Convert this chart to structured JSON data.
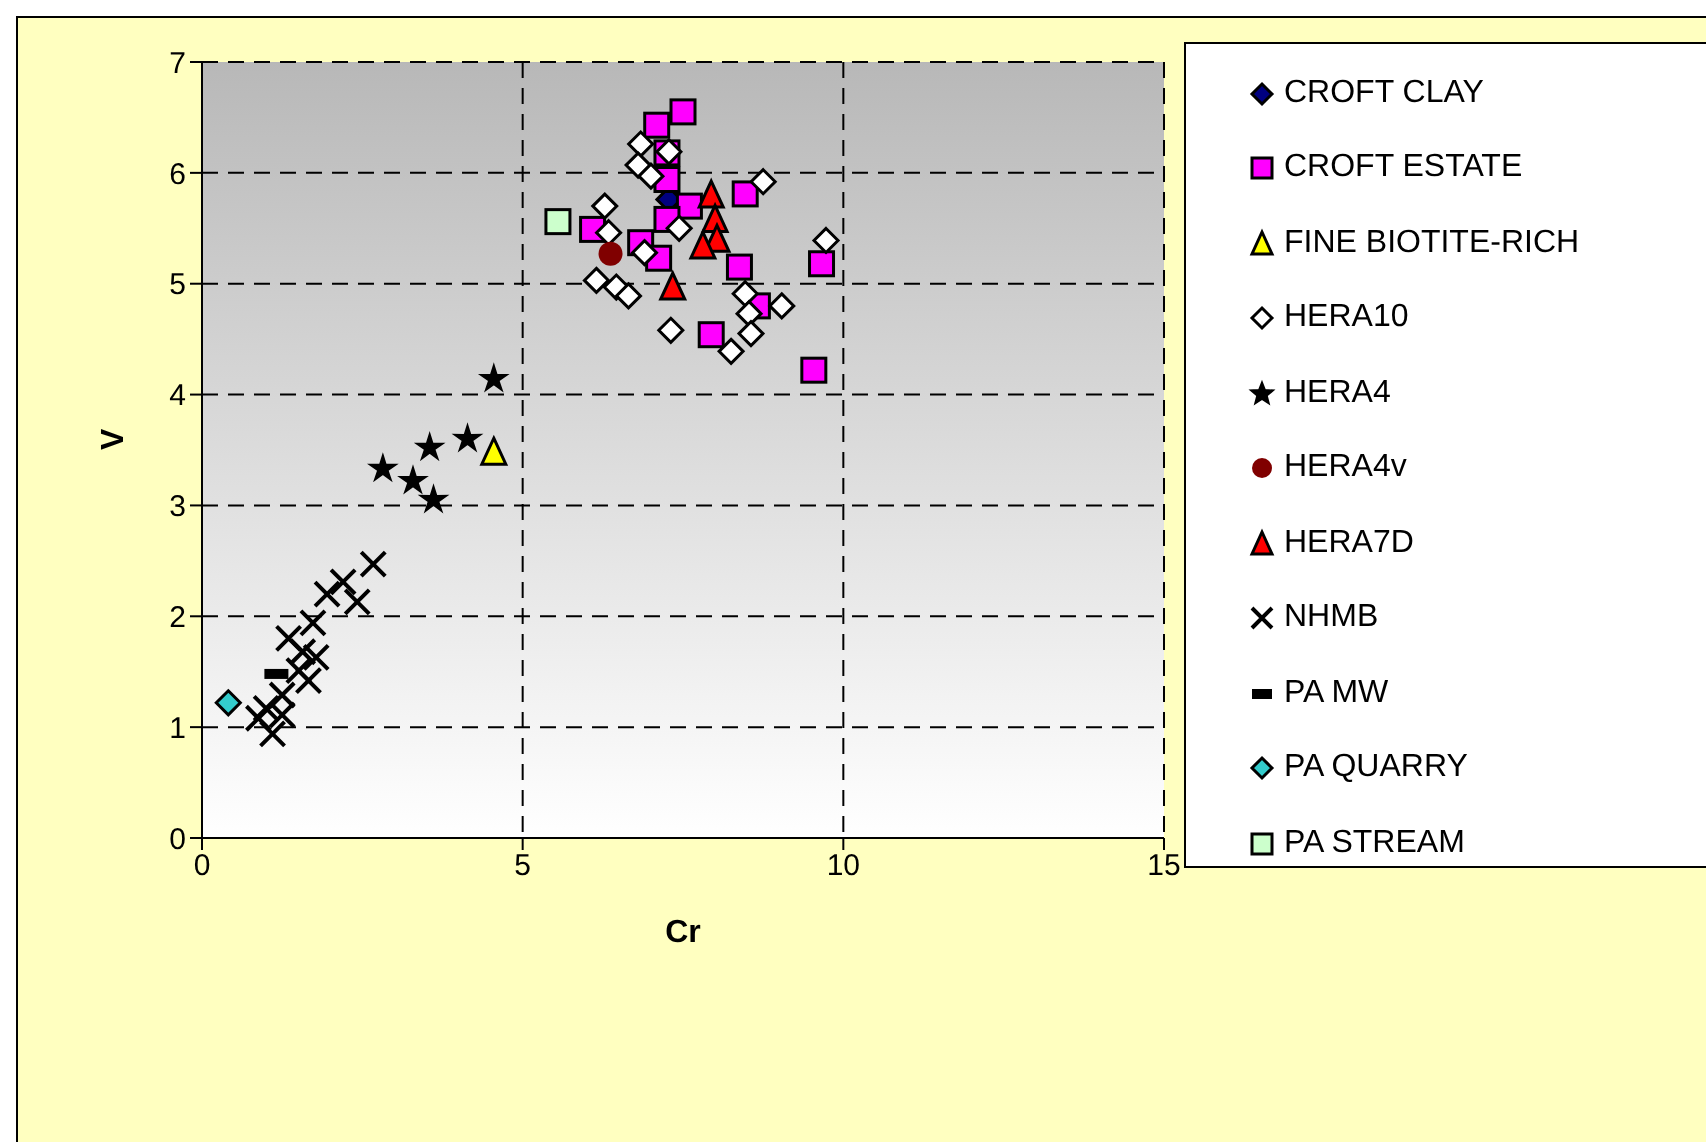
{
  "chart_data": {
    "type": "scatter",
    "xlabel": "Cr",
    "ylabel": "V",
    "xlim": [
      0,
      15
    ],
    "xticks": [
      0,
      5,
      10,
      15
    ],
    "ylim": [
      0,
      7
    ],
    "yticks": [
      0,
      1,
      2,
      3,
      4,
      5,
      6,
      7
    ],
    "grid": true,
    "legend": "right",
    "series": [
      {
        "name": "CROFT CLAY",
        "color": "#000080",
        "marker": "diamond",
        "x": [
          7.28
        ],
        "values": [
          5.76
        ]
      },
      {
        "name": "CROFT ESTATE",
        "color": "#ff00ff",
        "marker": "square",
        "x": [
          7.09,
          7.5,
          7.25,
          7.25,
          7.6,
          8.47,
          7.25,
          6.09,
          6.84,
          7.12,
          8.38,
          9.66,
          8.66,
          7.94,
          9.54
        ],
        "values": [
          6.43,
          6.55,
          6.18,
          5.94,
          5.7,
          5.81,
          5.58,
          5.49,
          5.37,
          5.23,
          5.15,
          5.18,
          4.8,
          4.54,
          4.22
        ]
      },
      {
        "name": "FINE BIOTITE-RICH",
        "color": "#ffff00",
        "marker": "triangle",
        "x": [
          4.55
        ],
        "values": [
          3.48
        ]
      },
      {
        "name": "HERA10",
        "color": "#ffffff",
        "marker": "diamond",
        "x": [
          6.84,
          6.8,
          7.28,
          7.0,
          6.28,
          8.75,
          7.44,
          6.34,
          6.9,
          6.15,
          6.46,
          6.65,
          8.47,
          9.04,
          8.53,
          7.31,
          8.56,
          8.25,
          9.73
        ],
        "values": [
          6.26,
          6.07,
          6.19,
          5.97,
          5.7,
          5.92,
          5.5,
          5.46,
          5.28,
          5.03,
          4.97,
          4.89,
          4.91,
          4.8,
          4.73,
          4.58,
          4.55,
          4.39,
          5.39
        ]
      },
      {
        "name": "HERA4",
        "color": "#000000",
        "marker": "star",
        "x": [
          4.55,
          3.55,
          4.14,
          2.82,
          3.29,
          3.61
        ],
        "values": [
          4.14,
          3.52,
          3.6,
          3.33,
          3.22,
          3.05
        ]
      },
      {
        "name": "HERA4v",
        "color": "#800000",
        "marker": "circle",
        "x": [
          6.37
        ],
        "values": [
          5.27
        ]
      },
      {
        "name": "HERA7D",
        "color": "#ff0000",
        "marker": "triangle",
        "x": [
          7.94,
          8.0,
          8.03,
          7.81,
          7.34
        ],
        "values": [
          5.8,
          5.58,
          5.4,
          5.34,
          4.97
        ]
      },
      {
        "name": "NHMB",
        "color": "#000000",
        "marker": "cross",
        "x": [
          2.67,
          2.2,
          1.95,
          2.42,
          1.73,
          1.35,
          1.57,
          1.78,
          1.51,
          1.66,
          1.25,
          1.0,
          1.25,
          1.1,
          0.88
        ],
        "values": [
          2.47,
          2.31,
          2.2,
          2.13,
          1.94,
          1.8,
          1.68,
          1.63,
          1.51,
          1.42,
          1.29,
          1.17,
          1.11,
          0.94,
          1.08
        ]
      },
      {
        "name": "PA  MW",
        "color": "#000000",
        "x": [
          1.16
        ],
        "values": [
          1.48
        ]
      },
      {
        "name": "PA  QUARRY",
        "color": "#33cccc",
        "marker": "diamond",
        "x": [
          0.41
        ],
        "values": [
          1.22
        ]
      },
      {
        "name": "PA  STREAM",
        "color": "#ccffcc",
        "marker": "square",
        "x": [
          5.55
        ],
        "values": [
          5.56
        ]
      }
    ]
  }
}
